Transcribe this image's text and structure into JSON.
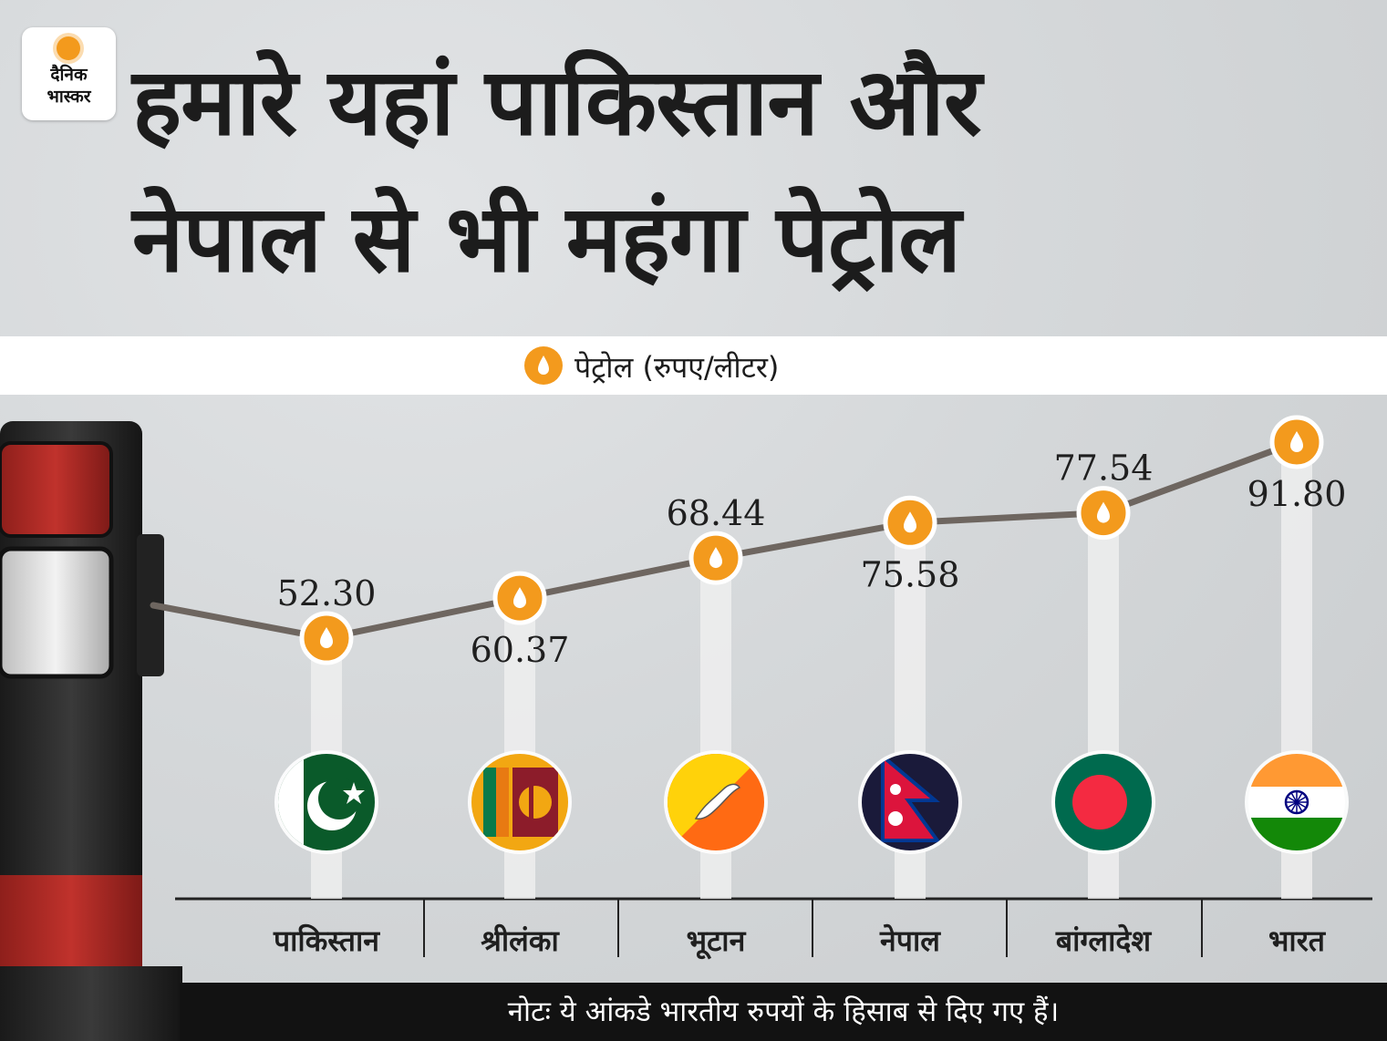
{
  "logo": {
    "line1": "दैनिक",
    "line2": "भास्कर"
  },
  "headline": {
    "line1": "हमारे यहां पाकिस्तान और",
    "line2": "नेपाल से भी महंगा पेट्रोल"
  },
  "note": "नोटः ये आंकडे भारतीय रुपयों के हिसाब से दिए गए हैं।",
  "colors": {
    "accent": "#f39a1d",
    "line": "#6e6660",
    "pump_red": "#b32a25",
    "pump_dark": "#2a2a2a"
  },
  "icons": {
    "legend": "fuel-drop-icon",
    "marker": "fuel-drop-icon",
    "pump": "fuel-pump-nozzle"
  },
  "chart_data": {
    "type": "line",
    "title": "",
    "legend": "पेट्रोल (रुपए/लीटर)",
    "categories": [
      "पाकिस्तान",
      "श्रीलंका",
      "भूटान",
      "नेपाल",
      "बांग्लादेश",
      "भारत"
    ],
    "series": [
      {
        "name": "पेट्रोल (रुपए/लीटर)",
        "values": [
          52.3,
          60.37,
          68.44,
          75.58,
          77.54,
          91.8
        ],
        "labels": [
          "52.30",
          "60.37",
          "68.44",
          "75.58",
          "77.54",
          "91.80"
        ]
      }
    ],
    "flags": [
      "pakistan-flag",
      "sri-lanka-flag",
      "bhutan-flag",
      "nepal-flag",
      "bangladesh-flag",
      "india-flag"
    ],
    "ylim": [
      50,
      95
    ],
    "grid": false
  }
}
